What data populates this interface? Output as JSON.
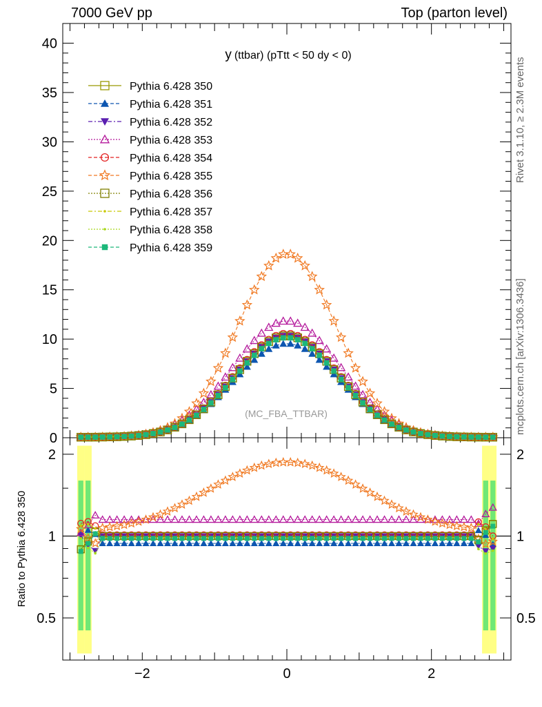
{
  "header": {
    "left": "7000 GeV pp",
    "right": "Top (parton level)"
  },
  "side_labels": {
    "rivet": "Rivet 3.1.10, ≥ 2.3M events",
    "mcplots": "mcplots.cern.ch [arXiv:1306.3436]"
  },
  "chart_data": [
    {
      "type": "line",
      "title_main": "y",
      "title_rest": "(ttbar) (pTtt < 50 dy < 0)",
      "watermark": "(MC_FBA_TTBAR)",
      "xlabel": "",
      "ylabel": "",
      "xlim": [
        -3.1,
        3.1
      ],
      "ylim": [
        0,
        42
      ],
      "x_ticks": [
        -2,
        0,
        2
      ],
      "y_ticks": [
        0,
        5,
        10,
        15,
        20,
        25,
        30,
        35,
        40
      ],
      "y_tick_labels": [
        "0",
        "5",
        "10",
        "15",
        "20",
        "25",
        "30",
        "35",
        "40"
      ],
      "legend_position": "top-left",
      "shape": "gaussian",
      "x_range": [
        -2.9,
        2.9
      ],
      "series": [
        {
          "name": "Pythia 6.428 350",
          "color": "#999900",
          "marker": "open-square",
          "peak": 10.3,
          "sigma": 0.72,
          "dash": ""
        },
        {
          "name": "Pythia 6.428 351",
          "color": "#0d56b0",
          "marker": "filled-triangle-up",
          "peak": 9.5,
          "sigma": 0.73,
          "dash": "5,3"
        },
        {
          "name": "Pythia 6.428 352",
          "color": "#5a1fb0",
          "marker": "filled-triangle-down",
          "peak": 10.3,
          "sigma": 0.72,
          "dash": "6,3,2,3"
        },
        {
          "name": "Pythia 6.428 353",
          "color": "#b4189b",
          "marker": "open-triangle-up",
          "peak": 11.8,
          "sigma": 0.74,
          "dash": "2,2"
        },
        {
          "name": "Pythia 6.428 354",
          "color": "#e32121",
          "marker": "open-circle",
          "peak": 10.5,
          "sigma": 0.72,
          "dash": "5,3"
        },
        {
          "name": "Pythia 6.428 355",
          "color": "#f07820",
          "marker": "open-star",
          "peak": 18.6,
          "sigma": 0.68,
          "dash": "5,3"
        },
        {
          "name": "Pythia 6.428 356",
          "color": "#808000",
          "marker": "open-square",
          "peak": 10.3,
          "sigma": 0.72,
          "dash": "2,2"
        },
        {
          "name": "Pythia 6.428 357",
          "color": "#c8c800",
          "marker": "small-dot",
          "peak": 10.2,
          "sigma": 0.72,
          "dash": "6,3,2,3"
        },
        {
          "name": "Pythia 6.428 358",
          "color": "#a8d81a",
          "marker": "small-dot",
          "peak": 10.1,
          "sigma": 0.72,
          "dash": "2,2"
        },
        {
          "name": "Pythia 6.428 359",
          "color": "#1cb87a",
          "marker": "filled-square",
          "peak": 10.1,
          "sigma": 0.72,
          "dash": "5,3"
        }
      ]
    },
    {
      "type": "line",
      "ylabel": "Ratio to Pythia 6.428 350",
      "xlim": [
        -3.1,
        3.1
      ],
      "ylim": [
        0.35,
        2.3
      ],
      "y_ticks": [
        0.5,
        1,
        2
      ],
      "y_tick_labels": [
        "0.5",
        "1",
        "2"
      ],
      "x_ticks": [
        -2,
        0,
        2
      ],
      "x_tick_labels": [
        "−2",
        "0",
        "2"
      ],
      "reference_line": 1,
      "ratios": [
        {
          "name": "Pythia 6.428 350",
          "level": 1.0
        },
        {
          "name": "Pythia 6.428 351",
          "level": 0.94
        },
        {
          "name": "Pythia 6.428 352",
          "level": 1.0
        },
        {
          "name": "Pythia 6.428 353",
          "level": 1.15
        },
        {
          "name": "Pythia 6.428 354",
          "level": 1.01
        },
        {
          "name": "Pythia 6.428 355",
          "level": 1.85
        },
        {
          "name": "Pythia 6.428 356",
          "level": 1.0
        },
        {
          "name": "Pythia 6.428 357",
          "level": 0.99
        },
        {
          "name": "Pythia 6.428 358",
          "level": 0.98
        },
        {
          "name": "Pythia 6.428 359",
          "level": 0.98
        }
      ]
    }
  ]
}
